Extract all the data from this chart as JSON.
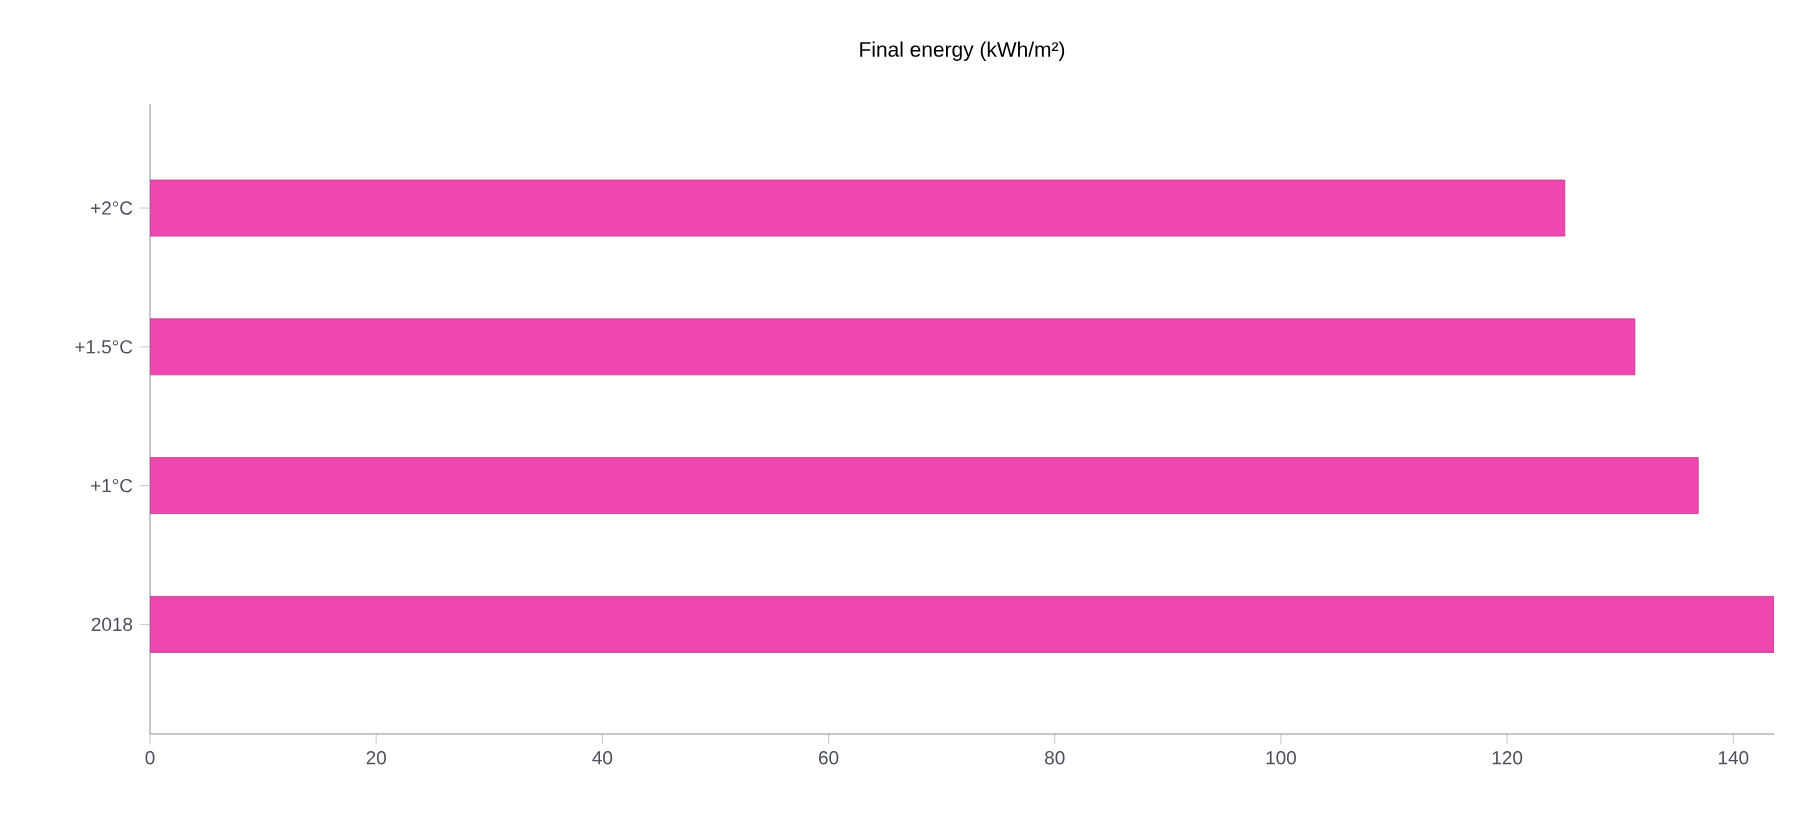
{
  "chart_data": {
    "type": "bar",
    "orientation": "horizontal",
    "title": "Final energy (kWh/m²)",
    "categories": [
      "+2°C",
      "+1.5°C",
      "+1°C",
      "2018"
    ],
    "values": [
      125.1,
      131.3,
      136.9,
      143.6
    ],
    "color": "#ee48b0",
    "xlim": [
      0,
      143.6
    ],
    "xticks": [
      0,
      20,
      40,
      60,
      80,
      100,
      120,
      140
    ],
    "grid": false
  }
}
